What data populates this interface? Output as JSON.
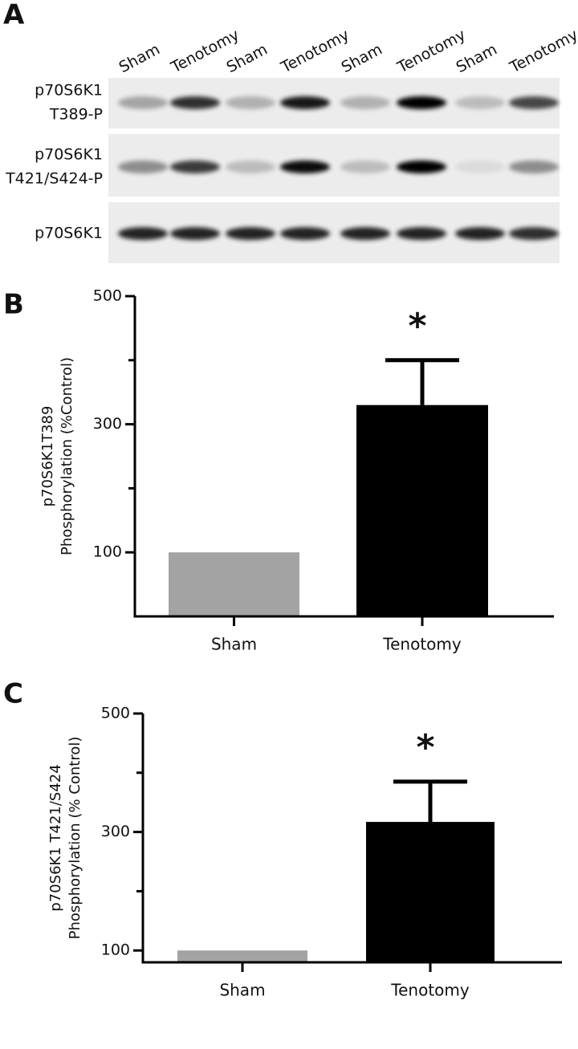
{
  "panel_labels": [
    "A",
    "B",
    "C"
  ],
  "blot": {
    "lanes": [
      "Sham",
      "Tenotomy",
      "Sham",
      "Tenotomy",
      "Sham",
      "Tenotomy",
      "Sham",
      "Tenotomy"
    ],
    "rows": [
      [
        "p70S6K1",
        "T389-P"
      ],
      [
        "p70S6K1",
        "T421/S424-P"
      ],
      [
        "p70S6K1"
      ]
    ]
  },
  "chart_data": [
    {
      "type": "bar",
      "ylabel": [
        "p70S6K1T389",
        "Phosphorylation (%Control)"
      ],
      "categories": [
        "Sham",
        "Tenotomy"
      ],
      "values": [
        100,
        330
      ],
      "errors": [
        null,
        70
      ],
      "colors": [
        "#a3a3a3",
        "#000000"
      ],
      "annotations": [
        null,
        "*"
      ],
      "ylim": [
        0,
        500
      ],
      "yticks": [
        100,
        300,
        500
      ],
      "minor_yticks": [
        200,
        400
      ]
    },
    {
      "type": "bar",
      "ylabel": [
        "p70S6K1 T421/S424",
        "Phosphorylation (% Control)"
      ],
      "categories": [
        "Sham",
        "Tenotomy"
      ],
      "values": [
        100,
        317
      ],
      "errors": [
        null,
        68
      ],
      "colors": [
        "#a3a3a3",
        "#000000"
      ],
      "annotations": [
        null,
        "*"
      ],
      "ylim": [
        80,
        500
      ],
      "yticks": [
        100,
        300,
        500
      ],
      "minor_yticks": [
        200,
        400
      ]
    }
  ]
}
